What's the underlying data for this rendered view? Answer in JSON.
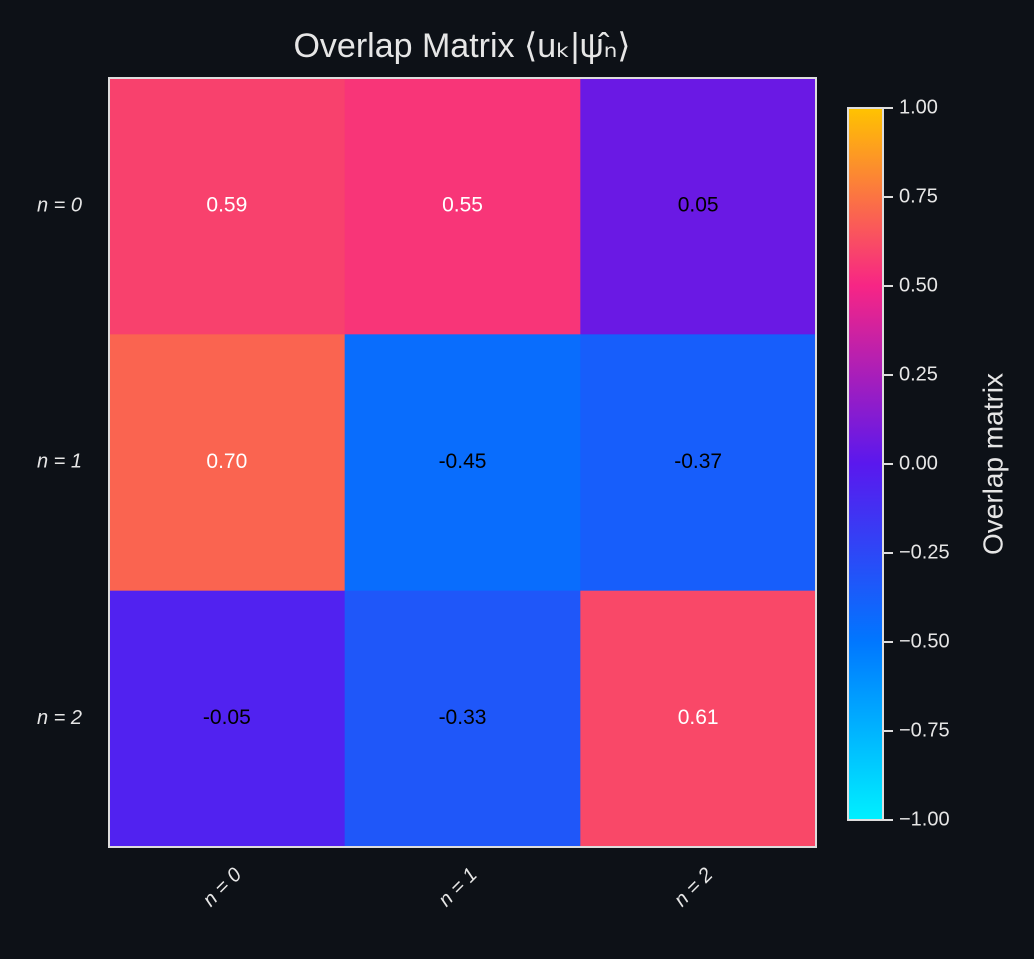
{
  "chart_data": {
    "type": "heatmap",
    "title": "Overlap Matrix ⟨uₖ|ψ̂ₙ⟩",
    "x_categories": [
      "n = 0",
      "n = 1",
      "n = 2"
    ],
    "y_categories": [
      "n = 0",
      "n = 1",
      "n = 2"
    ],
    "values": [
      [
        0.59,
        0.55,
        0.05
      ],
      [
        0.7,
        -0.45,
        -0.37
      ],
      [
        -0.05,
        -0.33,
        0.61
      ]
    ],
    "value_labels": [
      [
        "0.59",
        "0.55",
        "0.05"
      ],
      [
        "0.70",
        "-0.45",
        "-0.37"
      ],
      [
        "-0.05",
        "-0.33",
        "0.61"
      ]
    ],
    "colorbar_label": "Overlap matrix",
    "zlim": [
      -1,
      1
    ],
    "zticks": [
      {
        "value": -1,
        "label": "−1.00"
      },
      {
        "value": -0.75,
        "label": "−0.75"
      },
      {
        "value": -0.5,
        "label": "−0.50"
      },
      {
        "value": -0.25,
        "label": "−0.25"
      },
      {
        "value": 0,
        "label": "0.00"
      },
      {
        "value": 0.25,
        "label": "0.25"
      },
      {
        "value": 0.5,
        "label": "0.50"
      },
      {
        "value": 0.75,
        "label": "0.75"
      },
      {
        "value": 1,
        "label": "1.00"
      }
    ],
    "colormap": [
      "#00f0ff",
      "#0077ff",
      "#5a18ee",
      "#f72585",
      "#ffc300"
    ]
  }
}
